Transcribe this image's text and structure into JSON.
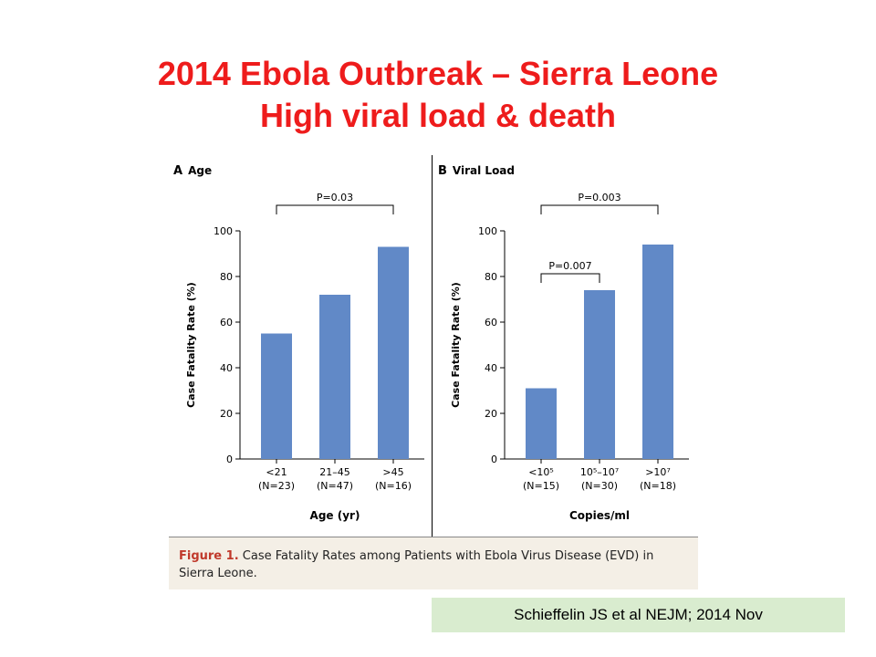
{
  "slide": {
    "title_line1": "2014 Ebola Outbreak – Sierra Leone",
    "title_line2": "High viral load & death",
    "citation": "Schieffelin JS et al  NEJM; 2014 Nov"
  },
  "figure": {
    "caption_label": "Figure 1.",
    "caption_text": " Case Fatality Rates among Patients with Ebola Virus Disease (EVD) in Sierra Leone."
  },
  "colors": {
    "bar": "#6189c7",
    "title": "#ee1c1c",
    "citation_bg": "#d9eccf",
    "caption_bg": "#f4efe6"
  },
  "chart_data": [
    {
      "type": "bar",
      "panel_letter": "A",
      "title": "Age",
      "ylabel": "Case Fatality Rate (%)",
      "xlabel": "Age (yr)",
      "ylim": [
        0,
        100
      ],
      "yticks": [
        0,
        20,
        40,
        60,
        80,
        100
      ],
      "categories": [
        {
          "label": "<21",
          "n": "(N=23)"
        },
        {
          "label": "21–45",
          "n": "(N=47)"
        },
        {
          "label": ">45",
          "n": "(N=16)"
        }
      ],
      "values": [
        55,
        72,
        93
      ],
      "annotations": [
        {
          "text": "P=0.03",
          "from": 0,
          "to": 2,
          "level": 0
        }
      ]
    },
    {
      "type": "bar",
      "panel_letter": "B",
      "title": "Viral Load",
      "ylabel": "Case Fatality Rate (%)",
      "xlabel": "Copies/ml",
      "ylim": [
        0,
        100
      ],
      "yticks": [
        0,
        20,
        40,
        60,
        80,
        100
      ],
      "categories": [
        {
          "label": "<10⁵",
          "n": "(N=15)"
        },
        {
          "label": "10⁵–10⁷",
          "n": "(N=30)"
        },
        {
          "label": ">10⁷",
          "n": "(N=18)"
        }
      ],
      "values": [
        31,
        74,
        94
      ],
      "annotations": [
        {
          "text": "P=0.003",
          "from": 0,
          "to": 2,
          "level": 0
        },
        {
          "text": "P=0.007",
          "from": 0,
          "to": 1,
          "level": 1
        }
      ]
    }
  ]
}
